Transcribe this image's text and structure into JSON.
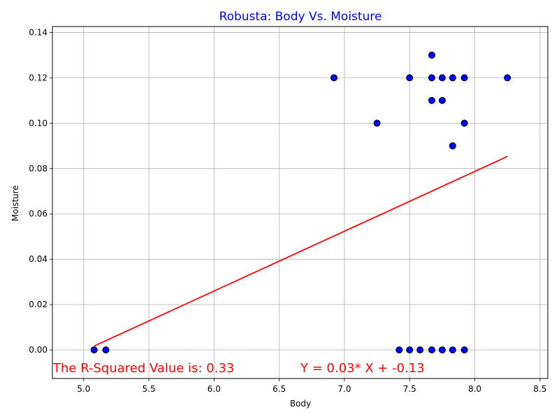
{
  "chart_data": {
    "type": "scatter",
    "title": "Robusta: Body Vs. Moisture",
    "xlabel": "Body",
    "ylabel": "Moisture",
    "xlim": [
      4.76,
      8.56
    ],
    "ylim": [
      -0.0126,
      0.1426
    ],
    "xticks": [
      5.0,
      5.5,
      6.0,
      6.5,
      7.0,
      7.5,
      8.0,
      8.5
    ],
    "xtick_labels": [
      "5.0",
      "5.5",
      "6.0",
      "6.5",
      "7.0",
      "7.5",
      "8.0",
      "8.5"
    ],
    "yticks": [
      0.0,
      0.02,
      0.04,
      0.06,
      0.08,
      0.1,
      0.12,
      0.14
    ],
    "ytick_labels": [
      "0.00",
      "0.02",
      "0.04",
      "0.06",
      "0.08",
      "0.10",
      "0.12",
      "0.14"
    ],
    "grid": true,
    "points": [
      {
        "x": 5.08,
        "y": 0.0
      },
      {
        "x": 5.17,
        "y": 0.0
      },
      {
        "x": 6.92,
        "y": 0.12
      },
      {
        "x": 7.25,
        "y": 0.1
      },
      {
        "x": 7.42,
        "y": 0.0
      },
      {
        "x": 7.5,
        "y": 0.12
      },
      {
        "x": 7.5,
        "y": 0.0
      },
      {
        "x": 7.58,
        "y": 0.0
      },
      {
        "x": 7.67,
        "y": 0.13
      },
      {
        "x": 7.67,
        "y": 0.12
      },
      {
        "x": 7.67,
        "y": 0.11
      },
      {
        "x": 7.67,
        "y": 0.0
      },
      {
        "x": 7.75,
        "y": 0.12
      },
      {
        "x": 7.75,
        "y": 0.11
      },
      {
        "x": 7.75,
        "y": 0.0
      },
      {
        "x": 7.83,
        "y": 0.12
      },
      {
        "x": 7.83,
        "y": 0.09
      },
      {
        "x": 7.83,
        "y": 0.0
      },
      {
        "x": 7.92,
        "y": 0.12
      },
      {
        "x": 7.92,
        "y": 0.1
      },
      {
        "x": 7.92,
        "y": 0.0
      },
      {
        "x": 8.25,
        "y": 0.12
      }
    ],
    "regression_line": {
      "x": [
        5.08,
        8.25
      ],
      "y": [
        0.0017,
        0.0853
      ]
    },
    "annotations": {
      "r_squared": "The R-Squared Value is: 0.33",
      "equation": "Y = 0.03* X + -0.13"
    },
    "colors": {
      "title": "#0000ff",
      "point_fill": "#0000ff",
      "point_edge": "#000000",
      "line": "#ff0000",
      "annotation": "#ff0000",
      "grid": "#b0b0b0"
    }
  }
}
